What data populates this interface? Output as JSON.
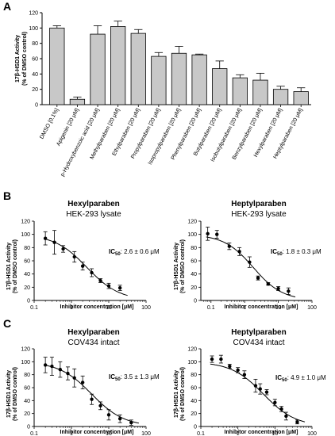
{
  "panels": {
    "a": "A",
    "b": "B",
    "c": "C"
  },
  "chart_data": [
    {
      "type": "bar",
      "panel": "A",
      "ylabel_line1": "17β-HSD1 Activity",
      "ylabel_line2": "(% of DMSO control)",
      "ylim": [
        0,
        120
      ],
      "yticks": [
        0,
        20,
        40,
        60,
        80,
        100,
        120
      ],
      "categories": [
        "DMSO [0.1%]",
        "Apigenin [20 μM]",
        "p-Hydroxybenzoic acid [20 μM]",
        "Methylparaben [20 μM]",
        "Ethylparaben [20 μM]",
        "Propylparaben [20 μM]",
        "Isopropylparaben [20 μM]",
        "Phenylparaben [20 μM]",
        "Butylparaben [20 μM]",
        "Isobutylparaben [20 μM]",
        "Benzylparaben [20 μM]",
        "Hexylparaben [20 μM]",
        "Heptylparaben [20 μM]"
      ],
      "values": [
        100,
        7,
        92,
        102,
        93,
        63,
        67,
        65,
        47,
        35,
        32,
        20,
        17
      ],
      "errors": [
        3,
        3,
        11,
        7,
        5,
        5,
        9,
        1,
        10,
        4,
        9,
        4,
        5
      ],
      "bar_color": "#c8c8c8"
    },
    {
      "type": "scatter",
      "panel": "B",
      "title": "Hexylparaben",
      "subtitle": "HEK-293 lysate",
      "ylabel_line1": "17β-HSD1 Activity",
      "ylabel_line2": "(% of DMSO control)",
      "xlabel": "Inhibitor concentration [μM]",
      "xscale": "log",
      "xlim": [
        0.1,
        100
      ],
      "ylim": [
        0,
        120
      ],
      "yticks": [
        0,
        20,
        40,
        60,
        80,
        100,
        120
      ],
      "xticks": [
        0.1,
        1,
        10,
        100
      ],
      "xticklabels": [
        "0.1",
        "1",
        "10",
        "100"
      ],
      "ic50_label": "IC",
      "ic50_sub": "50",
      "ic50_text": ": 2.6 ± 0.6 μM",
      "ic50": 2.6,
      "x": [
        0.2,
        0.35,
        0.6,
        1.2,
        2.0,
        3.5,
        6.0,
        10.0,
        20.0
      ],
      "y": [
        94,
        88,
        78,
        66,
        52,
        42,
        30,
        22,
        19
      ],
      "err": [
        10,
        18,
        5,
        8,
        6,
        6,
        3,
        4,
        4
      ]
    },
    {
      "type": "scatter",
      "panel": "B",
      "title": "Heptylparaben",
      "subtitle": "HEK-293 lysate",
      "ylabel_line1": "17β-HSD1 Activity",
      "ylabel_line2": "(% of DMSO control)",
      "xlabel": "Inhibitor concentration [μM]",
      "xscale": "log",
      "xlim": [
        0.05,
        100
      ],
      "ylim": [
        0,
        120
      ],
      "yticks": [
        0,
        20,
        40,
        60,
        80,
        100,
        120
      ],
      "xticks": [
        0.1,
        1,
        10,
        100
      ],
      "xticklabels": [
        "0.1",
        "1",
        "10",
        "100"
      ],
      "ic50_label": "IC",
      "ic50_sub": "50",
      "ic50_text": ": 1.8 ± 0.3 μM",
      "ic50": 1.8,
      "x": [
        0.08,
        0.15,
        0.35,
        0.7,
        1.4,
        2.5,
        5.0,
        10.0,
        20.0
      ],
      "y": [
        101,
        100,
        82,
        74,
        58,
        34,
        25,
        18,
        14
      ],
      "err": [
        10,
        6,
        5,
        6,
        8,
        3,
        2,
        3,
        5
      ]
    },
    {
      "type": "scatter",
      "panel": "C",
      "title": "Hexylparaben",
      "subtitle": "COV434 intact",
      "ylabel_line1": "17β-HSD1 Activity",
      "ylabel_line2": "(% of DMSO control)",
      "xlabel": "Inhibitor concentration [μM]",
      "xscale": "log",
      "xlim": [
        0.1,
        100
      ],
      "ylim": [
        0,
        120
      ],
      "yticks": [
        0,
        20,
        40,
        60,
        80,
        100,
        120
      ],
      "xticks": [
        0.1,
        1,
        10,
        100
      ],
      "xticklabels": [
        "0.1",
        "1",
        "10",
        "100"
      ],
      "ic50_label": "IC",
      "ic50_sub": "50",
      "ic50_text": ": 3.5 ± 1.3 μM",
      "ic50": 3.5,
      "x": [
        0.2,
        0.3,
        0.5,
        0.8,
        1.2,
        2.0,
        3.5,
        6.0,
        10.0,
        20.0,
        40.0
      ],
      "y": [
        95,
        93,
        88,
        82,
        75,
        68,
        42,
        32,
        18,
        12,
        6
      ],
      "err": [
        12,
        14,
        12,
        10,
        14,
        10,
        8,
        6,
        8,
        6,
        4
      ]
    },
    {
      "type": "scatter",
      "panel": "C",
      "title": "Heptylparaben",
      "subtitle": "COV434 intact",
      "ylabel_line1": "17β-HSD1 Activity",
      "ylabel_line2": "(% of DMSO control)",
      "xlabel": "Inhibitor concentration [μM]",
      "xscale": "log",
      "xlim": [
        0.1,
        100
      ],
      "ylim": [
        0,
        120
      ],
      "yticks": [
        0,
        20,
        40,
        60,
        80,
        100,
        120
      ],
      "xticks": [
        0.1,
        1,
        10,
        100
      ],
      "xticklabels": [
        "0.1",
        "1",
        "10",
        "100"
      ],
      "ic50_label": "IC",
      "ic50_sub": "50",
      "ic50_text": ": 4.9 ± 1.0 μM",
      "ic50": 4.9,
      "x": [
        0.2,
        0.35,
        0.6,
        1.0,
        1.5,
        3.0,
        4.0,
        6.0,
        10.0,
        15.0,
        20.0,
        40.0
      ],
      "y": [
        104,
        104,
        93,
        87,
        80,
        63,
        58,
        53,
        37,
        27,
        16,
        7
      ],
      "err": [
        5,
        6,
        3,
        4,
        6,
        10,
        8,
        4,
        5,
        4,
        6,
        3
      ]
    }
  ]
}
